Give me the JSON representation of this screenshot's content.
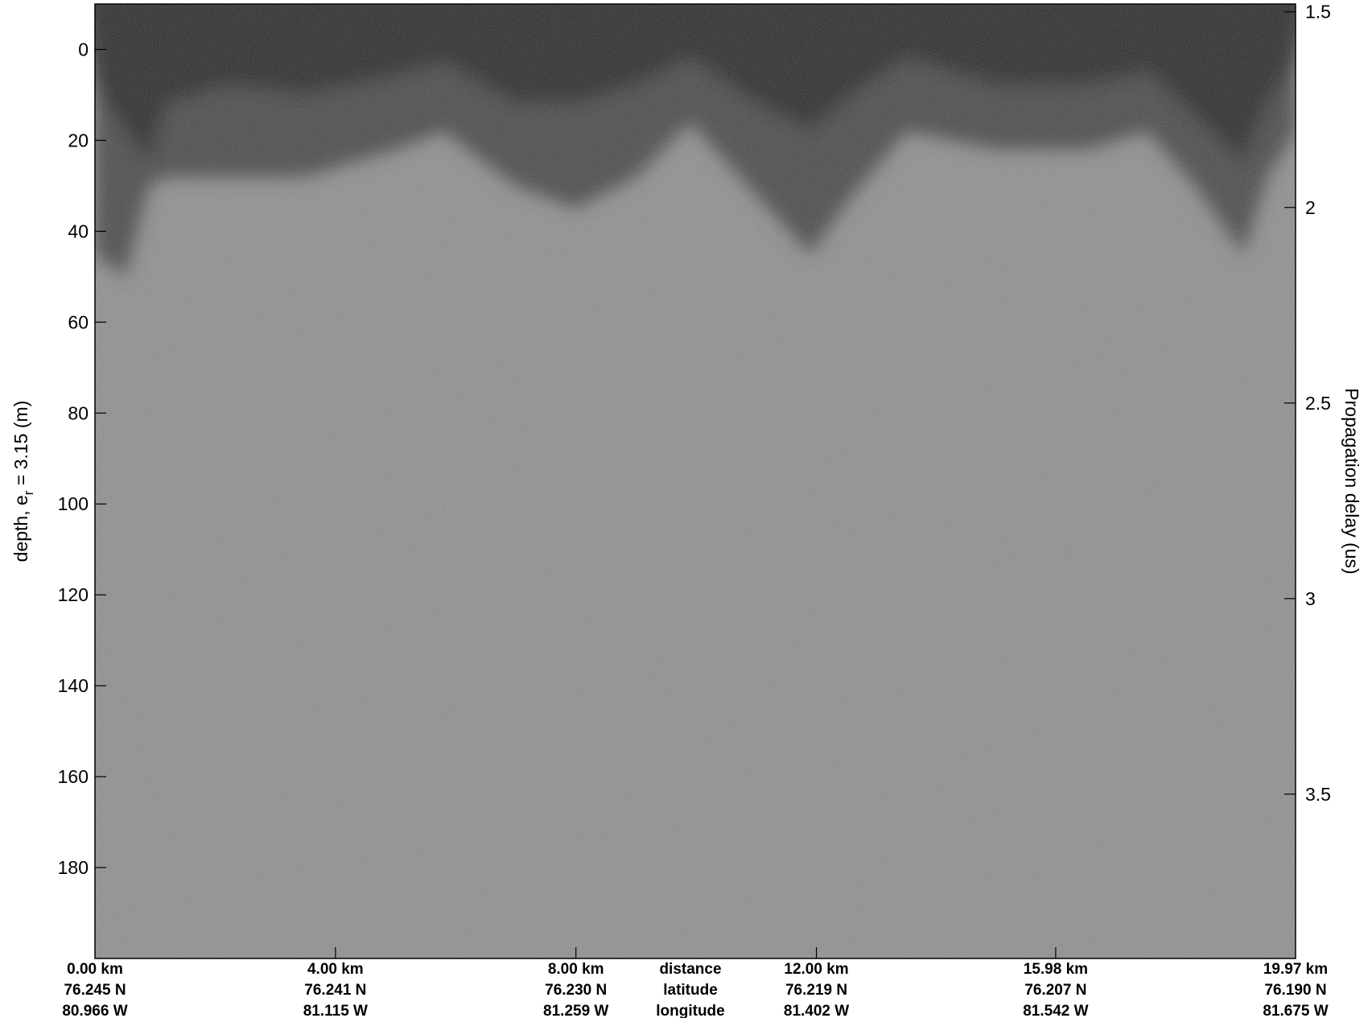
{
  "chart_data": {
    "type": "heatmap",
    "description_visible": "radar echogram (grayscale)",
    "colormap": "grayscale",
    "y_left": {
      "label_prefix": "depth, e",
      "label_sub": "r",
      "label_suffix": " = 3.15 (m)",
      "range": [
        -10,
        200
      ],
      "ticks": [
        0,
        20,
        40,
        60,
        80,
        100,
        120,
        140,
        160,
        180
      ]
    },
    "y_right": {
      "label": "Propagation delay (us)",
      "range": [
        1.48,
        3.92
      ],
      "ticks": [
        1.5,
        2,
        2.5,
        3,
        3.5
      ],
      "tick_labels": [
        "1.5",
        "2",
        "2.5",
        "3",
        "3.5"
      ]
    },
    "x": {
      "range": [
        0,
        19.97
      ],
      "ticks": [
        0,
        4.0,
        8.0,
        12.0,
        15.98,
        19.97
      ]
    },
    "bottom_rows": {
      "row_titles": [
        "distance",
        "latitude",
        "longitude"
      ],
      "distance": [
        "0.00 km",
        "4.00 km",
        "8.00 km",
        "12.00 km",
        "15.98 km",
        "19.97 km"
      ],
      "latitude": [
        "76.245 N",
        "76.241 N",
        "76.230 N",
        "76.219 N",
        "76.207 N",
        "76.190 N"
      ],
      "longitude": [
        "80.966 W",
        "81.115 W",
        "81.259 W",
        "81.402 W",
        "81.542 W",
        "81.675 W"
      ]
    },
    "surface_layer_depth_m": {
      "x_km": [
        0,
        0.5,
        0.9,
        1.2,
        2.2,
        3.5,
        5.0,
        5.8,
        7.0,
        8.0,
        9.0,
        9.9,
        11.0,
        11.9,
        12.6,
        13.5,
        15.0,
        16.5,
        17.5,
        18.3,
        19.1,
        19.5,
        19.97
      ],
      "top_depth_m": [
        8,
        18,
        25,
        12,
        8,
        10,
        6,
        3,
        12,
        12,
        8,
        2,
        12,
        18,
        10,
        2,
        8,
        8,
        5,
        15,
        25,
        12,
        3
      ],
      "bottom_depth_m": [
        45,
        50,
        30,
        28,
        28,
        28,
        22,
        18,
        30,
        35,
        28,
        16,
        32,
        45,
        32,
        18,
        22,
        22,
        18,
        30,
        45,
        28,
        18
      ]
    }
  }
}
